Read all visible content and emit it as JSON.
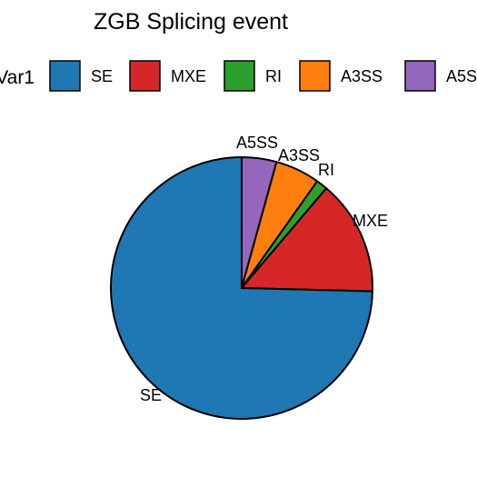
{
  "chart_data": {
    "type": "pie",
    "title": "ZGB Splicing event",
    "legend_title": "Var1",
    "legend_position": "top",
    "categories": [
      "SE",
      "MXE",
      "RI",
      "A3SS",
      "A5SS"
    ],
    "values": [
      74.6,
      14.2,
      1.4,
      5.5,
      4.3
    ],
    "colors": [
      "#1f77b4",
      "#d62728",
      "#2ca02c",
      "#ff7f0e",
      "#9467bd"
    ],
    "slice_labels": [
      "SE",
      "MXE",
      "RI",
      "A3SS",
      "A5SS"
    ]
  }
}
